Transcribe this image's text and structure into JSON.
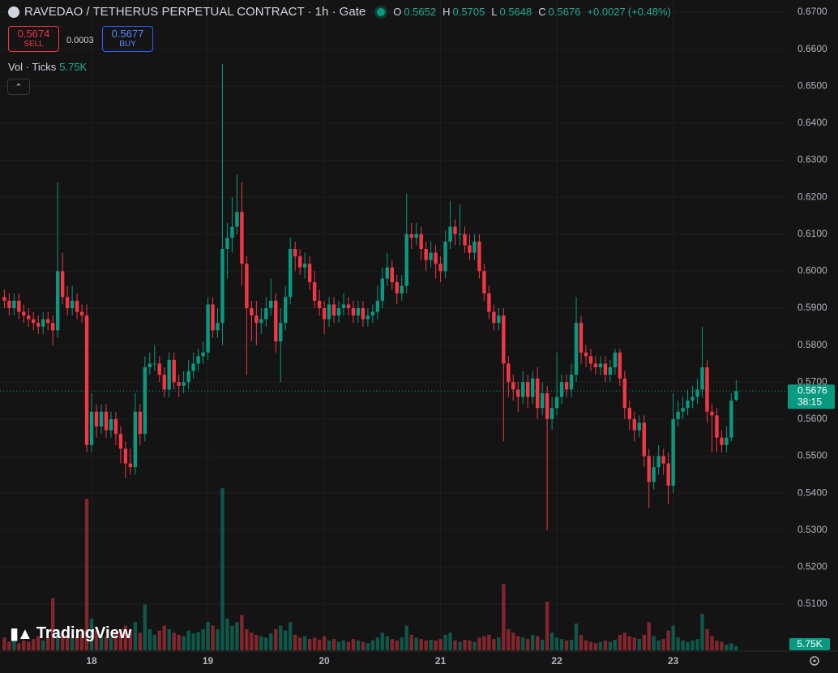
{
  "header": {
    "title": "RAVEDAO / TETHERUS PERPETUAL CONTRACT · 1h · Gate",
    "ohlc_letters": [
      "O",
      "H",
      "L",
      "C"
    ],
    "change": "+0.0027",
    "change_pct": "(+0.48%)",
    "sell": {
      "price": 0.5674,
      "label": "SELL"
    },
    "spread": 0.0003,
    "buy": {
      "price": 0.5677,
      "label": "BUY"
    },
    "volume_legend": "Vol · Ticks"
  },
  "branding": "TradingView",
  "countdown": "38:15",
  "chart_data": {
    "type": "candlestick",
    "categories": [
      null,
      null,
      null,
      null,
      null,
      null,
      null,
      null,
      null,
      null,
      null,
      null,
      null,
      null,
      null,
      null,
      null,
      null,
      "18",
      null,
      null,
      null,
      null,
      null,
      null,
      null,
      null,
      null,
      null,
      null,
      null,
      null,
      null,
      null,
      null,
      null,
      null,
      null,
      null,
      null,
      null,
      null,
      "19",
      null,
      null,
      null,
      null,
      null,
      null,
      null,
      null,
      null,
      null,
      null,
      null,
      null,
      null,
      null,
      null,
      null,
      null,
      null,
      null,
      null,
      null,
      null,
      "20",
      null,
      null,
      null,
      null,
      null,
      null,
      null,
      null,
      null,
      null,
      null,
      null,
      null,
      null,
      null,
      null,
      null,
      null,
      null,
      null,
      null,
      null,
      null,
      "21",
      null,
      null,
      null,
      null,
      null,
      null,
      null,
      null,
      null,
      null,
      null,
      null,
      null,
      null,
      null,
      null,
      null,
      null,
      null,
      null,
      null,
      null,
      null,
      "22",
      null,
      null,
      null,
      null,
      null,
      null,
      null,
      null,
      null,
      null,
      null,
      null,
      null,
      null,
      null,
      null,
      null,
      null,
      null,
      null,
      null,
      null,
      null,
      "23",
      null,
      null,
      null,
      null,
      null,
      null,
      null,
      null,
      null,
      null,
      null,
      null,
      null
    ],
    "open": [
      0.593,
      0.592,
      0.59,
      0.592,
      0.589,
      0.588,
      0.587,
      0.586,
      0.585,
      0.587,
      0.586,
      0.584,
      0.6,
      0.593,
      0.59,
      0.592,
      0.589,
      0.588,
      0.553,
      0.562,
      0.558,
      0.562,
      0.557,
      0.56,
      0.556,
      0.552,
      0.548,
      0.547,
      0.562,
      0.556,
      0.574,
      0.575,
      0.575,
      0.572,
      0.568,
      0.576,
      0.57,
      0.569,
      0.57,
      0.573,
      0.575,
      0.577,
      0.578,
      0.591,
      0.584,
      0.586,
      0.606,
      0.609,
      0.612,
      0.616,
      0.602,
      0.59,
      0.588,
      0.586,
      0.587,
      0.59,
      0.592,
      0.581,
      0.586,
      0.593,
      0.606,
      0.604,
      0.601,
      0.602,
      0.597,
      0.592,
      0.59,
      0.587,
      0.591,
      0.588,
      0.59,
      0.591,
      0.59,
      0.588,
      0.59,
      0.587,
      0.588,
      0.589,
      0.592,
      0.598,
      0.601,
      0.597,
      0.594,
      0.596,
      0.61,
      0.609,
      0.61,
      0.606,
      0.603,
      0.605,
      0.602,
      0.6,
      0.608,
      0.612,
      0.61,
      0.61,
      0.607,
      0.605,
      0.608,
      0.6,
      0.594,
      0.589,
      0.586,
      0.588,
      0.575,
      0.57,
      0.568,
      0.566,
      0.57,
      0.566,
      0.571,
      0.563,
      0.567,
      0.56,
      0.563,
      0.566,
      0.57,
      0.568,
      0.572,
      0.586,
      0.578,
      0.577,
      0.575,
      0.574,
      0.575,
      0.572,
      0.574,
      0.578,
      0.571,
      0.563,
      0.56,
      0.557,
      0.559,
      0.55,
      0.543,
      0.547,
      0.55,
      0.548,
      0.542,
      0.56,
      0.562,
      0.563,
      0.565,
      0.566,
      0.568,
      0.574,
      0.562,
      0.561,
      0.555,
      0.553,
      0.555,
      0.5652
    ],
    "high": [
      0.595,
      0.594,
      0.594,
      0.594,
      0.591,
      0.59,
      0.589,
      0.588,
      0.589,
      0.589,
      0.588,
      0.624,
      0.605,
      0.596,
      0.596,
      0.594,
      0.591,
      0.591,
      0.567,
      0.564,
      0.564,
      0.564,
      0.562,
      0.562,
      0.558,
      0.554,
      0.552,
      0.567,
      0.564,
      0.577,
      0.578,
      0.58,
      0.577,
      0.574,
      0.578,
      0.578,
      0.572,
      0.573,
      0.576,
      0.578,
      0.579,
      0.581,
      0.593,
      0.593,
      0.59,
      0.656,
      0.613,
      0.62,
      0.626,
      0.624,
      0.604,
      0.592,
      0.592,
      0.59,
      0.593,
      0.598,
      0.594,
      0.59,
      0.596,
      0.609,
      0.608,
      0.606,
      0.605,
      0.604,
      0.6,
      0.595,
      0.592,
      0.593,
      0.593,
      0.592,
      0.594,
      0.593,
      0.592,
      0.592,
      0.592,
      0.59,
      0.591,
      0.596,
      0.601,
      0.605,
      0.603,
      0.599,
      0.599,
      0.621,
      0.613,
      0.613,
      0.612,
      0.608,
      0.608,
      0.607,
      0.604,
      0.611,
      0.619,
      0.614,
      0.618,
      0.612,
      0.61,
      0.61,
      0.61,
      0.602,
      0.596,
      0.591,
      0.59,
      0.59,
      0.577,
      0.572,
      0.57,
      0.573,
      0.572,
      0.573,
      0.574,
      0.57,
      0.569,
      0.566,
      0.578,
      0.572,
      0.572,
      0.575,
      0.593,
      0.588,
      0.58,
      0.579,
      0.577,
      0.577,
      0.577,
      0.576,
      0.579,
      0.579,
      0.573,
      0.565,
      0.562,
      0.561,
      0.561,
      0.552,
      0.55,
      0.553,
      0.552,
      0.551,
      0.567,
      0.565,
      0.566,
      0.568,
      0.569,
      0.571,
      0.585,
      0.576,
      0.564,
      0.563,
      0.557,
      0.558,
      0.567,
      0.5705
    ],
    "low": [
      0.59,
      0.588,
      0.588,
      0.587,
      0.586,
      0.585,
      0.584,
      0.583,
      0.583,
      0.584,
      0.58,
      0.582,
      0.591,
      0.588,
      0.588,
      0.587,
      0.586,
      0.551,
      0.551,
      0.555,
      0.556,
      0.555,
      0.555,
      0.553,
      0.548,
      0.544,
      0.545,
      0.545,
      0.553,
      0.554,
      0.572,
      0.573,
      0.57,
      0.566,
      0.566,
      0.568,
      0.566,
      0.567,
      0.568,
      0.571,
      0.573,
      0.575,
      0.576,
      0.582,
      0.582,
      0.58,
      0.598,
      0.605,
      0.61,
      0.596,
      0.572,
      0.581,
      0.58,
      0.583,
      0.585,
      0.588,
      0.578,
      0.57,
      0.584,
      0.591,
      0.6,
      0.599,
      0.598,
      0.595,
      0.59,
      0.588,
      0.583,
      0.585,
      0.586,
      0.586,
      0.588,
      0.588,
      0.586,
      0.586,
      0.585,
      0.585,
      0.586,
      0.587,
      0.59,
      0.596,
      0.595,
      0.591,
      0.592,
      0.594,
      0.606,
      0.607,
      0.603,
      0.6,
      0.601,
      0.598,
      0.597,
      0.598,
      0.606,
      0.607,
      0.607,
      0.605,
      0.603,
      0.603,
      0.598,
      0.592,
      0.587,
      0.584,
      0.584,
      0.554,
      0.566,
      0.565,
      0.562,
      0.564,
      0.563,
      0.564,
      0.56,
      0.561,
      0.53,
      0.557,
      0.561,
      0.564,
      0.566,
      0.566,
      0.57,
      0.575,
      0.574,
      0.573,
      0.572,
      0.572,
      0.57,
      0.57,
      0.572,
      0.569,
      0.56,
      0.557,
      0.554,
      0.555,
      0.547,
      0.536,
      0.541,
      0.545,
      0.545,
      0.537,
      0.54,
      0.558,
      0.56,
      0.561,
      0.563,
      0.564,
      0.566,
      0.559,
      0.551,
      0.551,
      0.551,
      0.551,
      0.554,
      0.5648
    ],
    "close": [
      0.592,
      0.59,
      0.592,
      0.589,
      0.588,
      0.587,
      0.586,
      0.585,
      0.587,
      0.586,
      0.584,
      0.6,
      0.593,
      0.59,
      0.592,
      0.589,
      0.588,
      0.553,
      0.562,
      0.558,
      0.562,
      0.557,
      0.56,
      0.556,
      0.552,
      0.548,
      0.547,
      0.562,
      0.556,
      0.574,
      0.575,
      0.575,
      0.572,
      0.568,
      0.576,
      0.57,
      0.569,
      0.57,
      0.573,
      0.575,
      0.577,
      0.578,
      0.591,
      0.584,
      0.586,
      0.606,
      0.609,
      0.612,
      0.616,
      0.602,
      0.59,
      0.588,
      0.586,
      0.587,
      0.59,
      0.592,
      0.581,
      0.586,
      0.593,
      0.606,
      0.604,
      0.601,
      0.602,
      0.597,
      0.592,
      0.59,
      0.587,
      0.591,
      0.588,
      0.59,
      0.591,
      0.59,
      0.588,
      0.59,
      0.587,
      0.588,
      0.589,
      0.592,
      0.598,
      0.601,
      0.597,
      0.594,
      0.596,
      0.61,
      0.609,
      0.61,
      0.606,
      0.603,
      0.605,
      0.602,
      0.6,
      0.608,
      0.612,
      0.61,
      0.61,
      0.607,
      0.605,
      0.608,
      0.6,
      0.594,
      0.589,
      0.586,
      0.588,
      0.575,
      0.57,
      0.568,
      0.566,
      0.57,
      0.566,
      0.571,
      0.563,
      0.567,
      0.56,
      0.563,
      0.566,
      0.57,
      0.568,
      0.572,
      0.586,
      0.578,
      0.577,
      0.575,
      0.574,
      0.575,
      0.572,
      0.574,
      0.578,
      0.571,
      0.563,
      0.56,
      0.557,
      0.559,
      0.55,
      0.543,
      0.547,
      0.55,
      0.548,
      0.542,
      0.56,
      0.562,
      0.563,
      0.565,
      0.566,
      0.568,
      0.574,
      0.562,
      0.561,
      0.555,
      0.553,
      0.555,
      0.565,
      0.5676
    ],
    "volume": [
      18,
      12,
      15,
      10,
      14,
      12,
      16,
      20,
      14,
      18,
      74,
      30,
      25,
      22,
      18,
      20,
      24,
      215,
      45,
      28,
      22,
      20,
      18,
      26,
      30,
      35,
      28,
      40,
      25,
      65,
      30,
      22,
      28,
      35,
      30,
      25,
      22,
      20,
      28,
      24,
      26,
      30,
      40,
      35,
      30,
      230,
      45,
      35,
      40,
      50,
      30,
      25,
      22,
      20,
      18,
      24,
      30,
      35,
      28,
      40,
      22,
      18,
      20,
      16,
      18,
      15,
      20,
      14,
      16,
      12,
      14,
      12,
      16,
      14,
      12,
      10,
      14,
      18,
      25,
      20,
      16,
      14,
      18,
      35,
      22,
      18,
      16,
      14,
      15,
      14,
      16,
      22,
      25,
      14,
      12,
      15,
      14,
      12,
      18,
      20,
      22,
      16,
      18,
      94,
      30,
      25,
      20,
      18,
      16,
      22,
      20,
      15,
      69,
      25,
      18,
      16,
      14,
      15,
      38,
      22,
      14,
      12,
      10,
      12,
      14,
      12,
      15,
      22,
      25,
      20,
      18,
      16,
      22,
      40,
      20,
      14,
      16,
      28,
      35,
      18,
      14,
      12,
      14,
      16,
      52,
      30,
      20,
      14,
      12,
      8,
      10,
      5.75
    ],
    "last_volume_label": "5.75K",
    "ylim": [
      0.4975,
      0.6733
    ],
    "yticks": [
      {
        "value": 0.51,
        "label": "0.5100"
      },
      {
        "value": 0.52,
        "label": "0.5200"
      },
      {
        "value": 0.53,
        "label": "0.5300"
      },
      {
        "value": 0.54,
        "label": "0.5400"
      },
      {
        "value": 0.55,
        "label": "0.5500"
      },
      {
        "value": 0.56,
        "label": "0.5600"
      },
      {
        "value": 0.57,
        "label": "0.5700"
      },
      {
        "value": 0.58,
        "label": "0.5800"
      },
      {
        "value": 0.59,
        "label": "0.5900"
      },
      {
        "value": 0.6,
        "label": "0.6000"
      },
      {
        "value": 0.61,
        "label": "0.6100"
      },
      {
        "value": 0.62,
        "label": "0.6200"
      },
      {
        "value": 0.63,
        "label": "0.6300"
      },
      {
        "value": 0.64,
        "label": "0.6400"
      },
      {
        "value": 0.65,
        "label": "0.6500"
      },
      {
        "value": 0.66,
        "label": "0.6600"
      },
      {
        "value": 0.67,
        "label": "0.6700"
      }
    ],
    "volume_ylim": [
      0,
      260
    ],
    "grid": true,
    "up_color": "#089981",
    "down_color": "#f23645",
    "volume_up_color": "rgba(8,153,129,0.5)",
    "volume_down_color": "rgba(242,54,69,0.5)"
  }
}
